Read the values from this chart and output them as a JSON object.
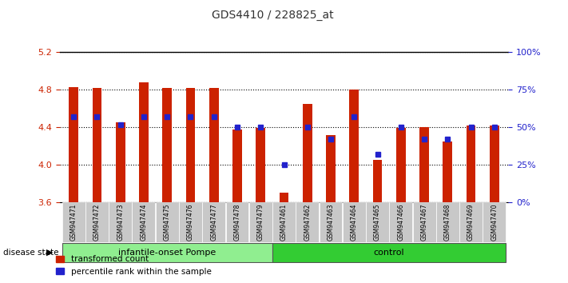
{
  "title": "GDS4410 / 228825_at",
  "samples": [
    "GSM947471",
    "GSM947472",
    "GSM947473",
    "GSM947474",
    "GSM947475",
    "GSM947476",
    "GSM947477",
    "GSM947478",
    "GSM947479",
    "GSM947461",
    "GSM947462",
    "GSM947463",
    "GSM947464",
    "GSM947465",
    "GSM947466",
    "GSM947467",
    "GSM947468",
    "GSM947469",
    "GSM947470"
  ],
  "transformed_count": [
    4.83,
    4.82,
    4.45,
    4.88,
    4.82,
    4.82,
    4.82,
    4.38,
    4.39,
    3.7,
    4.65,
    4.32,
    4.8,
    4.05,
    4.39,
    4.4,
    4.25,
    4.42,
    4.42
  ],
  "percentile": [
    57,
    57,
    52,
    57,
    57,
    57,
    57,
    50,
    50,
    25,
    50,
    42,
    57,
    32,
    50,
    42,
    42,
    50,
    50
  ],
  "pompe_count": 9,
  "control_count": 10,
  "ylim_left": [
    3.6,
    5.2
  ],
  "ylim_right": [
    0,
    100
  ],
  "yticks_left": [
    3.6,
    4.0,
    4.4,
    4.8,
    5.2
  ],
  "yticks_right": [
    0,
    25,
    50,
    75,
    100
  ],
  "bar_color": "#CC2200",
  "dot_color": "#2222CC",
  "bar_width": 0.4,
  "background_color": "#ffffff",
  "left_tick_color": "#CC2200",
  "right_tick_color": "#2222CC",
  "pompe_color": "#90EE90",
  "control_color": "#33CC33"
}
